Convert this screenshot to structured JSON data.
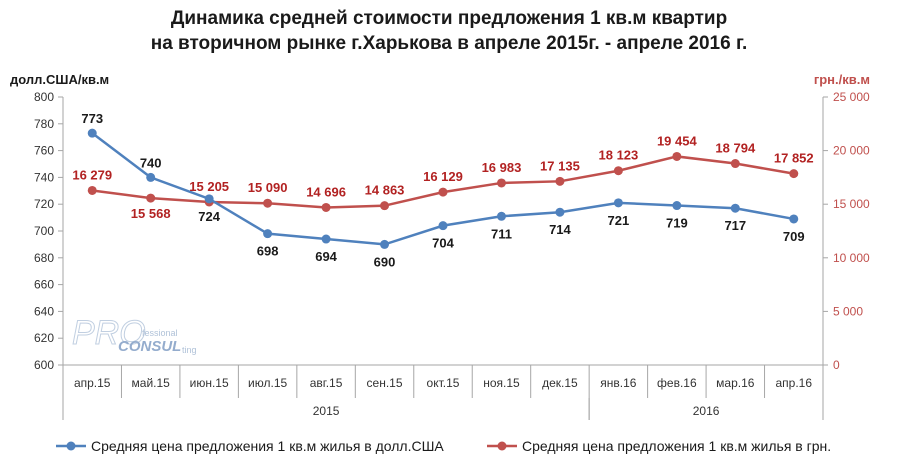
{
  "chart_data": {
    "type": "line",
    "title": "Динамика средней стоимости предложения 1 кв.м квартир",
    "subtitle": "на вторичном рынке г.Харькова в апреле 2015г. - апреле 2016 г.",
    "categories": [
      "апр.15",
      "май.15",
      "июн.15",
      "июл.15",
      "авг.15",
      "сен.15",
      "окт.15",
      "ноя.15",
      "дек.15",
      "янв.16",
      "фев.16",
      "мар.16",
      "апр.16"
    ],
    "year_groups": [
      {
        "label": "2015",
        "from": 0,
        "to": 8
      },
      {
        "label": "2016",
        "from": 9,
        "to": 12
      }
    ],
    "y_left_label": "долл.США/кв.м",
    "y_right_label": "грн./кв.м",
    "y_left_lim": [
      600,
      800
    ],
    "y_left_ticks": [
      600,
      620,
      640,
      660,
      680,
      700,
      720,
      740,
      760,
      780,
      800
    ],
    "y_right_lim": [
      0,
      25000
    ],
    "y_right_ticks": [
      0,
      5000,
      10000,
      15000,
      20000,
      25000
    ],
    "y_right_tick_labels": [
      "0",
      "5 000",
      "10 000",
      "15 000",
      "20 000",
      "25 000"
    ],
    "series": [
      {
        "name": "Средняя цена предложения 1 кв.м жилья в долл.США",
        "axis": "left",
        "color": "#4F81BD",
        "values": [
          773,
          740,
          724,
          698,
          694,
          690,
          704,
          711,
          714,
          721,
          719,
          717,
          709
        ],
        "labels": [
          "773",
          "740",
          "724",
          "698",
          "694",
          "690",
          "704",
          "711",
          "714",
          "721",
          "719",
          "717",
          "709"
        ]
      },
      {
        "name": "Средняя цена предложения 1 кв.м жилья в грн.",
        "axis": "right",
        "color": "#C0504D",
        "label_color": "#B22222",
        "values": [
          16279,
          15568,
          15205,
          15090,
          14696,
          14863,
          16129,
          16983,
          17135,
          18123,
          19454,
          18794,
          17852
        ],
        "labels": [
          "16 279",
          "15 568",
          "15 205",
          "15 090",
          "14 696",
          "14 863",
          "16 129",
          "16 983",
          "17 135",
          "18 123",
          "19 454",
          "18 794",
          "17 852"
        ]
      }
    ],
    "grid": false,
    "legend_position": "bottom"
  },
  "watermark": {
    "brand": "PRO CONSULTING",
    "parts": {
      "big1": "PRO",
      "small1": "fessional",
      "big2": "CONSUL",
      "small2": "ting"
    }
  },
  "colors": {
    "left_axis": "#4F81BD",
    "right_axis": "#C0504D",
    "axis_line": "#A6A6A6",
    "title": "#1a1a1a"
  }
}
